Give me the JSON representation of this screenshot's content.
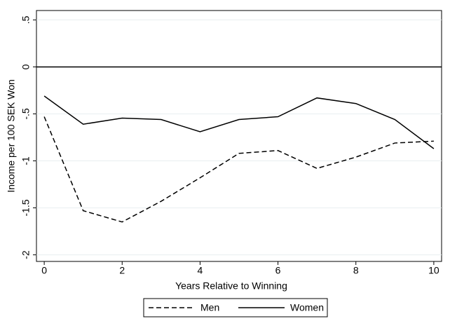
{
  "chart_data": {
    "type": "line",
    "x_label": "Years Relative to Winning",
    "y_label": "Income per 100 SEK Won",
    "x": [
      0,
      1,
      2,
      3,
      4,
      5,
      6,
      7,
      8,
      9,
      10
    ],
    "series": [
      {
        "name": "Men",
        "color": "#000000",
        "dash": true,
        "values": [
          -0.53,
          -1.53,
          -1.65,
          -1.43,
          -1.18,
          -0.92,
          -0.89,
          -1.08,
          -0.96,
          -0.81,
          -0.79
        ]
      },
      {
        "name": "Women",
        "color": "#000000",
        "dash": false,
        "values": [
          -0.31,
          -0.61,
          -0.545,
          -0.56,
          -0.69,
          -0.56,
          -0.53,
          -0.33,
          -0.39,
          -0.56,
          -0.87
        ]
      }
    ],
    "xlim": [
      -0.2,
      10.2
    ],
    "ylim": [
      -2.07,
      0.6
    ],
    "xticks": [
      0,
      2,
      4,
      6,
      8,
      10
    ],
    "yticks": [
      {
        "value": 0.5,
        "label": ".5"
      },
      0,
      {
        "value": -0.5,
        "label": "-.5"
      },
      -1,
      -1.5,
      -2
    ],
    "grid": true,
    "reference_line": 0,
    "legend": "bottom"
  }
}
